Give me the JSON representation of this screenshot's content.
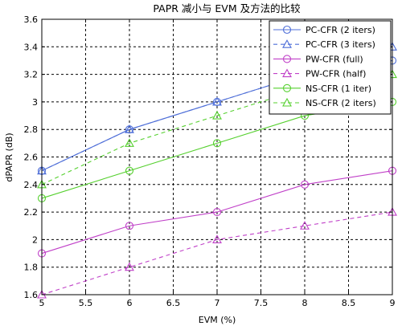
{
  "chart_data": {
    "type": "line",
    "title": "PAPR 减小与 EVM 及方法的比较",
    "xlabel": "EVM (%)",
    "ylabel": "dPAPR (dB)",
    "xlim": [
      5,
      9
    ],
    "ylim": [
      1.6,
      3.6
    ],
    "xticks": [
      5,
      5.5,
      6,
      6.5,
      7,
      7.5,
      8,
      8.5,
      9
    ],
    "yticks": [
      1.6,
      1.8,
      2,
      2.2,
      2.4,
      2.6,
      2.8,
      3,
      3.2,
      3.4,
      3.6
    ],
    "grid": true,
    "legend_position": "top-right",
    "x": [
      5,
      6,
      7,
      8,
      9
    ],
    "series": [
      {
        "name": "PC-CFR (2 iters)",
        "values": [
          2.5,
          2.8,
          3.0,
          3.2,
          3.3
        ],
        "color": "#4f6fd8",
        "marker": "circle",
        "dash": false
      },
      {
        "name": "PC-CFR (3 iters)",
        "values": [
          2.5,
          2.8,
          3.0,
          3.2,
          3.4
        ],
        "color": "#4f6fd8",
        "marker": "triangle",
        "dash": true
      },
      {
        "name": "PW-CFR (full)",
        "values": [
          1.9,
          2.1,
          2.2,
          2.4,
          2.5
        ],
        "color": "#c040c8",
        "marker": "circle",
        "dash": false
      },
      {
        "name": "PW-CFR (half)",
        "values": [
          1.6,
          1.8,
          2.0,
          2.1,
          2.2
        ],
        "color": "#c040c8",
        "marker": "triangle",
        "dash": true
      },
      {
        "name": "NS-CFR (1 iter)",
        "values": [
          2.3,
          2.5,
          2.7,
          2.9,
          3.0
        ],
        "color": "#55d02e",
        "marker": "circle",
        "dash": false
      },
      {
        "name": "NS-CFR (2 iters)",
        "values": [
          2.4,
          2.7,
          2.9,
          3.1,
          3.2
        ],
        "color": "#55d02e",
        "marker": "triangle",
        "dash": true
      }
    ]
  }
}
